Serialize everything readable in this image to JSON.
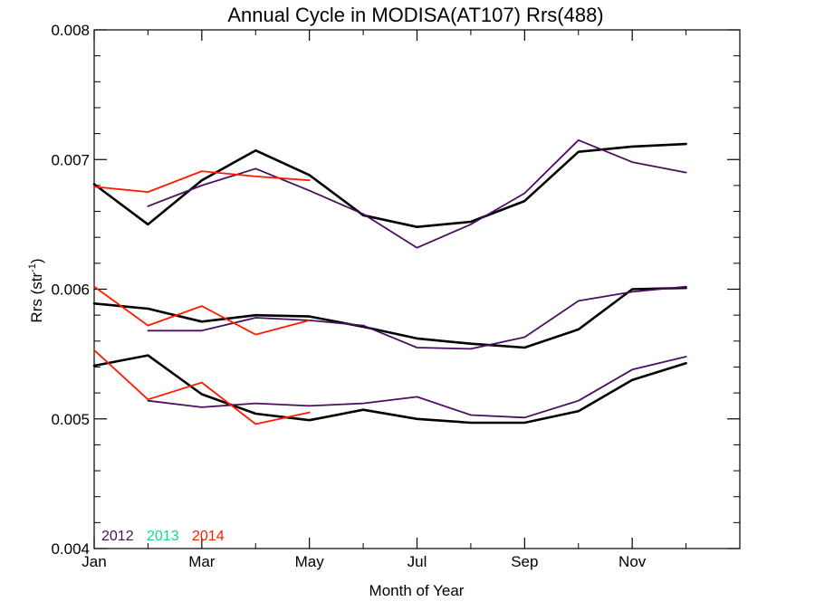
{
  "chart_data": {
    "type": "line",
    "title": "Annual Cycle in MODISA(AT107) Rrs(488)",
    "xlabel": "Month of Year",
    "ylabel_main": "Rrs (str",
    "ylabel_sup": "-1",
    "ylabel_close": ")",
    "xlim": [
      1,
      13
    ],
    "ylim": [
      0.004,
      0.008
    ],
    "x_ticks": [
      {
        "value": 1,
        "label": "Jan"
      },
      {
        "value": 3,
        "label": "Mar"
      },
      {
        "value": 5,
        "label": "May"
      },
      {
        "value": 7,
        "label": "Jul"
      },
      {
        "value": 9,
        "label": "Sep"
      },
      {
        "value": 11,
        "label": "Nov"
      }
    ],
    "x_minor": [
      2,
      4,
      6,
      8,
      10,
      12
    ],
    "y_ticks": [
      {
        "value": 0.004,
        "label": "0.004"
      },
      {
        "value": 0.005,
        "label": "0.005"
      },
      {
        "value": 0.006,
        "label": "0.006"
      },
      {
        "value": 0.007,
        "label": "0.007"
      },
      {
        "value": 0.008,
        "label": "0.008"
      }
    ],
    "y_minor_step": 0.0002,
    "grid": false,
    "legend": {
      "placement": "bottom-left",
      "entries": [
        {
          "label": "2012",
          "color": "#4b0f5e"
        },
        {
          "label": "2013",
          "color": "#00e676"
        },
        {
          "label": "2014",
          "color": "#ff1a00"
        }
      ]
    },
    "series": [
      {
        "group": "climatology",
        "band": "upper",
        "color": "#000000",
        "stroke": 2.6,
        "x": [
          1,
          2,
          3,
          4,
          5,
          6,
          7,
          8,
          9,
          10,
          11,
          12
        ],
        "y": [
          0.00681,
          0.0065,
          0.00684,
          0.00707,
          0.00688,
          0.00657,
          0.00648,
          0.00652,
          0.00668,
          0.00706,
          0.0071,
          0.00712
        ]
      },
      {
        "group": "climatology",
        "band": "middle",
        "color": "#000000",
        "stroke": 2.6,
        "x": [
          1,
          2,
          3,
          4,
          5,
          6,
          7,
          8,
          9,
          10,
          11,
          12
        ],
        "y": [
          0.00589,
          0.00585,
          0.00575,
          0.0058,
          0.00579,
          0.00571,
          0.00562,
          0.00558,
          0.00555,
          0.00569,
          0.006,
          0.00601
        ]
      },
      {
        "group": "climatology",
        "band": "lower",
        "color": "#000000",
        "stroke": 2.6,
        "x": [
          1,
          2,
          3,
          4,
          5,
          6,
          7,
          8,
          9,
          10,
          11,
          12
        ],
        "y": [
          0.00541,
          0.00549,
          0.00519,
          0.00504,
          0.00499,
          0.00507,
          0.005,
          0.00497,
          0.00497,
          0.00506,
          0.0053,
          0.00543
        ]
      },
      {
        "name": "2012",
        "band": "upper",
        "color": "#4b0f5e",
        "stroke": 1.8,
        "x": [
          2,
          3,
          4,
          5,
          6,
          7,
          8,
          9,
          10,
          11,
          12
        ],
        "y": [
          0.00664,
          0.0068,
          0.00693,
          0.00676,
          0.00658,
          0.00632,
          0.0065,
          0.00674,
          0.00715,
          0.00698,
          0.0069
        ]
      },
      {
        "name": "2012",
        "band": "middle",
        "color": "#4b0f5e",
        "stroke": 1.8,
        "x": [
          2,
          3,
          4,
          5,
          6,
          7,
          8,
          9,
          10,
          11,
          12
        ],
        "y": [
          0.00568,
          0.00568,
          0.00578,
          0.00576,
          0.00572,
          0.00555,
          0.00554,
          0.00563,
          0.00591,
          0.00598,
          0.00602
        ]
      },
      {
        "name": "2012",
        "band": "lower",
        "color": "#4b0f5e",
        "stroke": 1.8,
        "x": [
          2,
          3,
          4,
          5,
          6,
          7,
          8,
          9,
          10,
          11,
          12
        ],
        "y": [
          0.00514,
          0.00509,
          0.00512,
          0.0051,
          0.00512,
          0.00517,
          0.00503,
          0.00501,
          0.00514,
          0.00538,
          0.00548
        ]
      },
      {
        "name": "2014",
        "band": "upper",
        "color": "#ff1a00",
        "stroke": 1.8,
        "x": [
          1,
          2,
          3,
          4,
          5
        ],
        "y": [
          0.00679,
          0.00675,
          0.00691,
          0.00687,
          0.00684
        ]
      },
      {
        "name": "2014",
        "band": "middle",
        "color": "#ff1a00",
        "stroke": 1.8,
        "x": [
          1,
          2,
          3,
          4,
          5
        ],
        "y": [
          0.00602,
          0.00572,
          0.00587,
          0.00565,
          0.00576
        ]
      },
      {
        "name": "2014",
        "band": "lower",
        "color": "#ff1a00",
        "stroke": 1.8,
        "x": [
          1,
          2,
          3,
          4,
          5
        ],
        "y": [
          0.00553,
          0.00515,
          0.00528,
          0.00496,
          0.00505
        ]
      }
    ]
  }
}
